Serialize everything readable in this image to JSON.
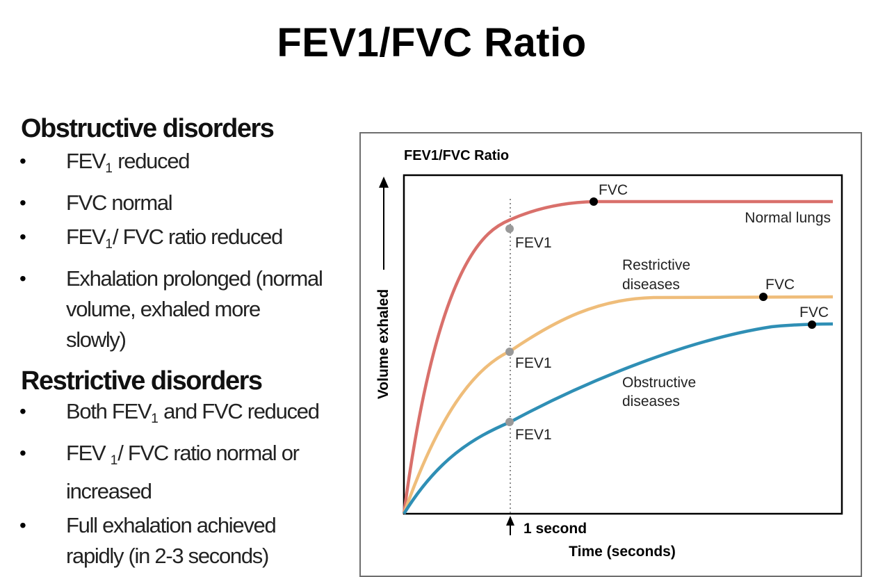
{
  "slide": {
    "title": "FEV1/FVC Ratio"
  },
  "obstructive": {
    "heading": "Obstructive disorders",
    "items": [
      {
        "main": "FEV",
        "sub": "1",
        "rest": " reduced"
      },
      {
        "main": "FVC normal"
      },
      {
        "main": "FEV",
        "sub": "1",
        "rest": "/ FVC ratio reduced"
      },
      {
        "main": "Exhalation prolonged (normal volume, exhaled more slowly)"
      }
    ]
  },
  "restrictive": {
    "heading": "Restrictive disorders",
    "items": [
      {
        "main": "Both FEV",
        "sub": "1",
        "rest": " and FVC reduced"
      },
      {
        "main": "FEV ",
        "sub": "1",
        "rest": "/ FVC ratio normal or increased"
      },
      {
        "main": "Full exhalation achieved rapidly (in 2-3 seconds)"
      }
    ]
  },
  "figure": {
    "title": "FEV1/FVC Ratio",
    "y_axis_label": "Volume exhaled",
    "x_axis_label": "Time (seconds)",
    "marker_label": "1 second",
    "colors": {
      "normal": "#d9706b",
      "restrictive": "#efbd7a",
      "obstructive": "#2f8fb5",
      "fev_dot": "#999999",
      "fvc_dot": "#000000"
    },
    "curves": {
      "normal": {
        "label": "Normal lungs",
        "fev_label": "FEV1",
        "fvc_label": "FVC"
      },
      "restrictive": {
        "label_line1": "Restrictive",
        "label_line2": "diseases",
        "fev_label": "FEV1",
        "fvc_label": "FVC"
      },
      "obstructive": {
        "label_line1": "Obstructive",
        "label_line2": "diseases",
        "fev_label": "FEV1",
        "fvc_label": "FVC"
      }
    }
  }
}
